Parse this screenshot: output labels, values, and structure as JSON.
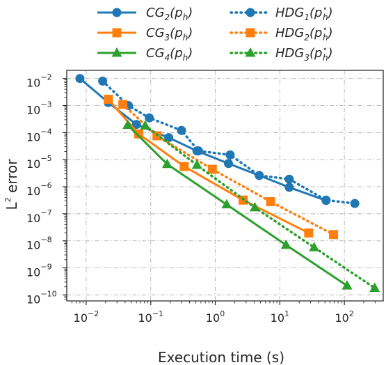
{
  "chart_data": {
    "type": "line",
    "xlabel": "Execution time (s)",
    "ylabel_main": "L",
    "ylabel_sup": "2",
    "ylabel_rest": " error",
    "xscale": "log",
    "yscale": "log",
    "xlim": [
      0.005,
      400
    ],
    "ylim": [
      6e-11,
      0.02
    ],
    "grid": true,
    "legend_placement": "top-center",
    "xticks": [
      {
        "base": "10",
        "exp": "−2",
        "value": 0.01
      },
      {
        "base": "10",
        "exp": "−1",
        "value": 0.1
      },
      {
        "base": "10",
        "exp": "0",
        "value": 1
      },
      {
        "base": "10",
        "exp": "1",
        "value": 10
      },
      {
        "base": "10",
        "exp": "2",
        "value": 100
      }
    ],
    "yticks": [
      {
        "base": "10",
        "exp": "−2",
        "value": 0.01
      },
      {
        "base": "10",
        "exp": "−3",
        "value": 0.001
      },
      {
        "base": "10",
        "exp": "−4",
        "value": 0.0001
      },
      {
        "base": "10",
        "exp": "−5",
        "value": 1e-05
      },
      {
        "base": "10",
        "exp": "−6",
        "value": 1e-06
      },
      {
        "base": "10",
        "exp": "−7",
        "value": 1e-07
      },
      {
        "base": "10",
        "exp": "−8",
        "value": 1e-08
      },
      {
        "base": "10",
        "exp": "−9",
        "value": 1e-09
      },
      {
        "base": "10",
        "exp": "−10",
        "value": 1e-10
      }
    ],
    "series": [
      {
        "id": "cg2",
        "name": "CG",
        "sub": "2",
        "arg": "(p",
        "argsub": "h",
        "argsup": "",
        "close": ")",
        "color": "#1f77b4",
        "linestyle": "solid",
        "marker": "circle",
        "x": [
          0.008,
          0.022,
          0.06,
          0.19,
          0.52,
          1.6,
          4.8,
          14,
          52
        ],
        "y": [
          0.01,
          0.0013,
          0.0002,
          6.5e-05,
          2.1e-05,
          7.2e-06,
          2.6e-06,
          9.5e-07,
          3.1e-07
        ]
      },
      {
        "id": "cg3",
        "name": "CG",
        "sub": "3",
        "arg": "(p",
        "argsub": "h",
        "argsup": "",
        "close": ")",
        "color": "#ff7f0e",
        "linestyle": "solid",
        "marker": "square",
        "x": [
          0.022,
          0.065,
          0.33,
          2.7,
          28
        ],
        "y": [
          0.0017,
          8.9e-05,
          5.6e-06,
          3.2e-07,
          1.95e-08
        ]
      },
      {
        "id": "cg4",
        "name": "CG",
        "sub": "4",
        "arg": "(p",
        "argsub": "h",
        "argsup": "",
        "close": ")",
        "color": "#2ca02c",
        "linestyle": "solid",
        "marker": "triangle",
        "x": [
          0.044,
          0.18,
          1.5,
          12.5,
          110
        ],
        "y": [
          0.00019,
          6.8e-06,
          2.2e-07,
          7e-09,
          2.2e-10
        ]
      },
      {
        "id": "hdg1",
        "name": "HDG",
        "sub": "1",
        "arg": "(p",
        "argsub": "h",
        "argsup": "⋆",
        "close": ")",
        "color": "#1f77b4",
        "linestyle": "dotted",
        "marker": "circle",
        "x": [
          0.018,
          0.045,
          0.095,
          0.3,
          0.55,
          1.7,
          4.8,
          14,
          52,
          145
        ],
        "y": [
          0.008,
          0.001,
          0.00035,
          0.00012,
          2.1e-05,
          1.5e-05,
          2.6e-06,
          1.9e-06,
          3.2e-07,
          2.4e-07
        ]
      },
      {
        "id": "hdg2",
        "name": "HDG",
        "sub": "2",
        "arg": "(p",
        "argsub": "h",
        "argsup": "⋆",
        "close": ")",
        "color": "#ff7f0e",
        "linestyle": "dotted",
        "marker": "square",
        "x": [
          0.037,
          0.125,
          0.9,
          7.2,
          68
        ],
        "y": [
          0.0011,
          7.6e-05,
          4.4e-06,
          2.8e-07,
          1.7e-08
        ]
      },
      {
        "id": "hdg3",
        "name": "HDG",
        "sub": "3",
        "arg": "(p",
        "argsub": "h",
        "argsup": "⋆",
        "close": ")",
        "color": "#2ca02c",
        "linestyle": "dotted",
        "marker": "triangle",
        "x": [
          0.082,
          0.52,
          4.1,
          34,
          295
        ],
        "y": [
          0.00018,
          6.3e-06,
          1.7e-07,
          5.7e-09,
          1.8e-10
        ]
      }
    ]
  }
}
